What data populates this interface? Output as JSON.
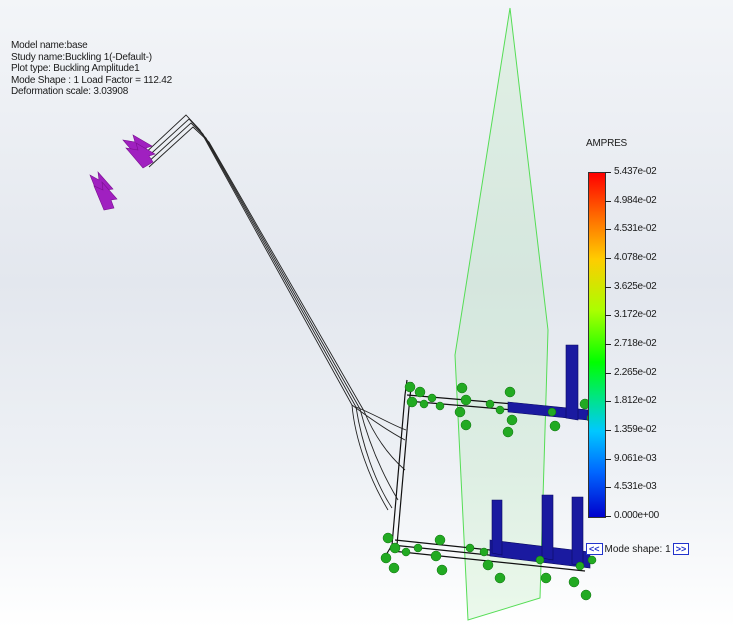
{
  "info": {
    "model_name": "Model name:base",
    "study_name": "Study name:Buckling 1(-Default-)",
    "plot_type": "Plot type: Buckling Amplitude1",
    "mode_shape": "Mode Shape : 1  Load Factor = 112.42",
    "deformation_scale": "Deformation scale: 3.03908"
  },
  "legend": {
    "title": "AMPRES",
    "labels": [
      "5.437e-02",
      "4.984e-02",
      "4.531e-02",
      "4.078e-02",
      "3.625e-02",
      "3.172e-02",
      "2.718e-02",
      "2.265e-02",
      "1.812e-02",
      "1.359e-02",
      "9.061e-03",
      "4.531e-03",
      "0.000e+00"
    ],
    "colors": {
      "max": "#ff0000",
      "mid": "#00ff00",
      "min": "#0000cc"
    }
  },
  "mode_nav": {
    "prev": "<<",
    "label": "Mode shape: 1",
    "next": ">>"
  },
  "colors": {
    "background": "#eef1f5",
    "plane_edge": "#55dd55",
    "frame_blue": "#1a1aa0",
    "fixture_green": "#22aa22",
    "load_arrow": "#a020c0",
    "wire": "#222222"
  }
}
